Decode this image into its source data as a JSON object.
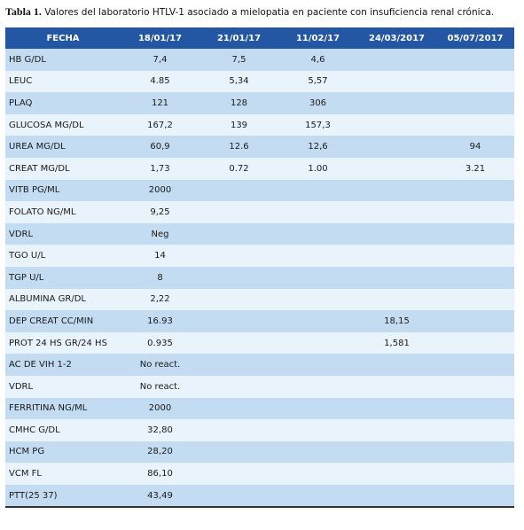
{
  "caption": {
    "label": "Tabla 1.",
    "text": "Valores del laboratorio HTLV-1 asociado a mielopatia en paciente con insuficiencia renal crónica."
  },
  "table": {
    "header": [
      "FECHA",
      "18/01/17",
      "21/01/17",
      "11/02/17",
      "24/03/2017",
      "05/07/2017"
    ],
    "rows": [
      [
        "HB G/DL",
        "7,4",
        "7,5",
        "4,6",
        null,
        null
      ],
      [
        "LEUC",
        "4.85",
        "5,34",
        "5,57",
        null,
        null
      ],
      [
        "PLAQ",
        "121",
        "128",
        "306",
        null,
        null
      ],
      [
        "GLUCOSA MG/DL",
        "167,2",
        "139",
        "157,3",
        null,
        null
      ],
      [
        "UREA MG/DL",
        "60,9",
        "12.6",
        "12,6",
        null,
        "94"
      ],
      [
        "CREAT MG/DL",
        "1,73",
        "0.72",
        "1.00",
        null,
        "3.21"
      ],
      [
        "VITB PG/ML",
        "2000",
        null,
        null,
        null,
        null
      ],
      [
        "FOLATO NG/ML",
        "9,25",
        null,
        null,
        null,
        null
      ],
      [
        "VDRL",
        "Neg",
        null,
        null,
        null,
        null
      ],
      [
        "TGO U/L",
        "14",
        null,
        null,
        null,
        null
      ],
      [
        "TGP U/L",
        "8",
        null,
        null,
        null,
        null
      ],
      [
        "ALBUMINA GR/DL",
        "2,22",
        null,
        null,
        null,
        null
      ],
      [
        "DEP CREAT CC/MIN",
        "16.93",
        null,
        null,
        "18,15",
        null
      ],
      [
        "PROT 24 HS GR/24 HS",
        "0.935",
        null,
        null,
        "1,581",
        null
      ],
      [
        "AC DE VIH 1-2",
        "No react.",
        null,
        null,
        null,
        null
      ],
      [
        "VDRL",
        "No react.",
        null,
        null,
        null,
        null
      ],
      [
        "FERRITINA NG/ML",
        "2000",
        null,
        null,
        null,
        null
      ],
      [
        "CMHC G/DL",
        "32,80",
        null,
        null,
        null,
        null
      ],
      [
        "HCM PG",
        "28,20",
        null,
        null,
        null,
        null
      ],
      [
        "VCM FL",
        "86,10",
        null,
        null,
        null,
        null
      ],
      [
        "PTT(25 37)",
        "43,49",
        null,
        null,
        null,
        null
      ]
    ]
  }
}
